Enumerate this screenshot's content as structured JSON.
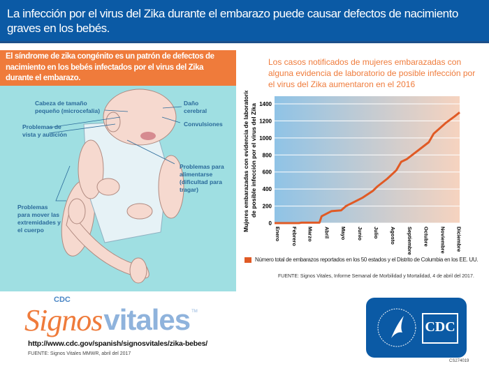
{
  "header": {
    "title": "La infección por el virus del Zika durante el embarazo puede causar defectos de nacimiento graves en los bebés."
  },
  "left": {
    "banner": "El síndrome de zika congénito es un patrón de defectos de nacimiento en los bebés infectados por el virus del Zika durante el embarazo.",
    "labels": {
      "head": "Cabeza de tamaño pequeño (microcefalia)",
      "brain": "Daño cerebral",
      "seizures": "Convulsiones",
      "vision": "Problemas de vista y audición",
      "feeding": "Problemas para alimentarse (dificultad para tragar)",
      "movement": "Problemas para mover las extremidades y el cuerpo"
    }
  },
  "chart_data": {
    "type": "line",
    "title": "Los casos notificados de mujeres embarazadas con alguna evidencia de laboratorio de posible infección por el virus del Zika aumentaron en el 2016",
    "ylabel": "Mujeres embarazadas con evidencia de laboratorio de posible infección por el virus del Zika",
    "xlabel": "",
    "ylim": [
      0,
      1400
    ],
    "yticks": [
      0,
      200,
      400,
      600,
      800,
      1000,
      1200,
      1400
    ],
    "xticks": [
      "Enero",
      "Febrero",
      "Marzo",
      "Abril",
      "Mayo",
      "Junio",
      "Julio",
      "Agosto",
      "Septiembre",
      "Octubre",
      "Noviembre",
      "Diciembre"
    ],
    "grid": true,
    "colors": {
      "line": "#e05a25",
      "bg_start": "#8fc3e6",
      "bg_end": "#f6d3bf"
    },
    "series": [
      {
        "name": "Número total de embarazos reportados en los 50 estados y el Distrito de Columbia en los EE. UU.",
        "points": [
          [
            "2016-01-01",
            0
          ],
          [
            "2016-02-15",
            0
          ],
          [
            "2016-02-20",
            5
          ],
          [
            "2016-03-24",
            5
          ],
          [
            "2016-03-28",
            80
          ],
          [
            "2016-04-15",
            140
          ],
          [
            "2016-05-03",
            150
          ],
          [
            "2016-05-12",
            200
          ],
          [
            "2016-06-12",
            300
          ],
          [
            "2016-07-01",
            380
          ],
          [
            "2016-07-09",
            430
          ],
          [
            "2016-07-27",
            520
          ],
          [
            "2016-08-13",
            620
          ],
          [
            "2016-08-22",
            720
          ],
          [
            "2016-09-01",
            750
          ],
          [
            "2016-10-12",
            950
          ],
          [
            "2016-10-21",
            1050
          ],
          [
            "2016-11-13",
            1180
          ],
          [
            "2016-11-28",
            1250
          ],
          [
            "2016-12-08",
            1300
          ]
        ]
      }
    ],
    "legend": "bottom",
    "source": "FUENTE: Signos Vitales, Informe Semanal de Morbilidad y Mortalidad, 4 de abril del 2017."
  },
  "footer": {
    "logo_cdc": "CDC",
    "logo_signos": "Signos",
    "logo_vitales": "vitales",
    "tm": "TM",
    "url": "http://www.cdc.gov/spanish/signosvitales/zika-bebes/",
    "source": "FUENTE: Signos Vitales MMWR, abril del 2017",
    "cdc_logo_text": "CDC",
    "code": "CS274019"
  }
}
